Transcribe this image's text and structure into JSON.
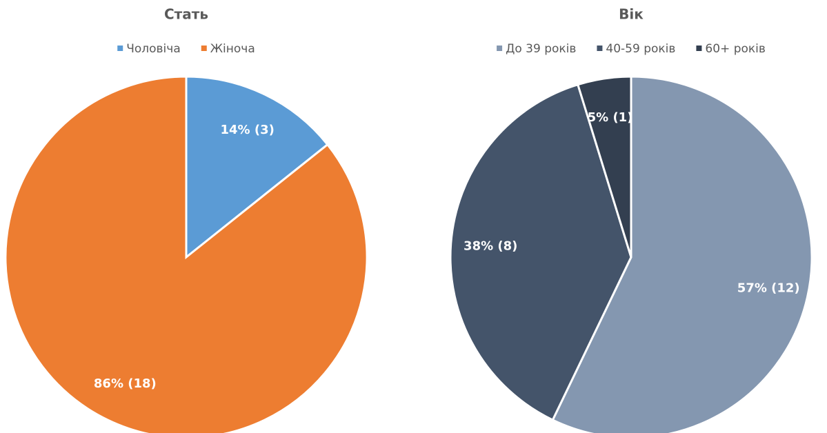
{
  "chart_data": [
    {
      "type": "pie",
      "title": "Стать",
      "categories": [
        "Чоловіча",
        "Жіноча"
      ],
      "values": [
        3,
        18
      ],
      "value_labels": [
        "14% (3)",
        "86% (18)"
      ],
      "colors": [
        "#5b9bd5",
        "#ed7d31"
      ],
      "legend": "top"
    },
    {
      "type": "pie",
      "title": "Вік",
      "categories": [
        "До 39 років",
        "40-59 років",
        "60+ років"
      ],
      "values": [
        12,
        8,
        1
      ],
      "value_labels": [
        "57% (12)",
        "38% (8)",
        "5% (1)"
      ],
      "colors": [
        "#8497b0",
        "#44546a",
        "#333f50"
      ],
      "legend": "top"
    }
  ]
}
